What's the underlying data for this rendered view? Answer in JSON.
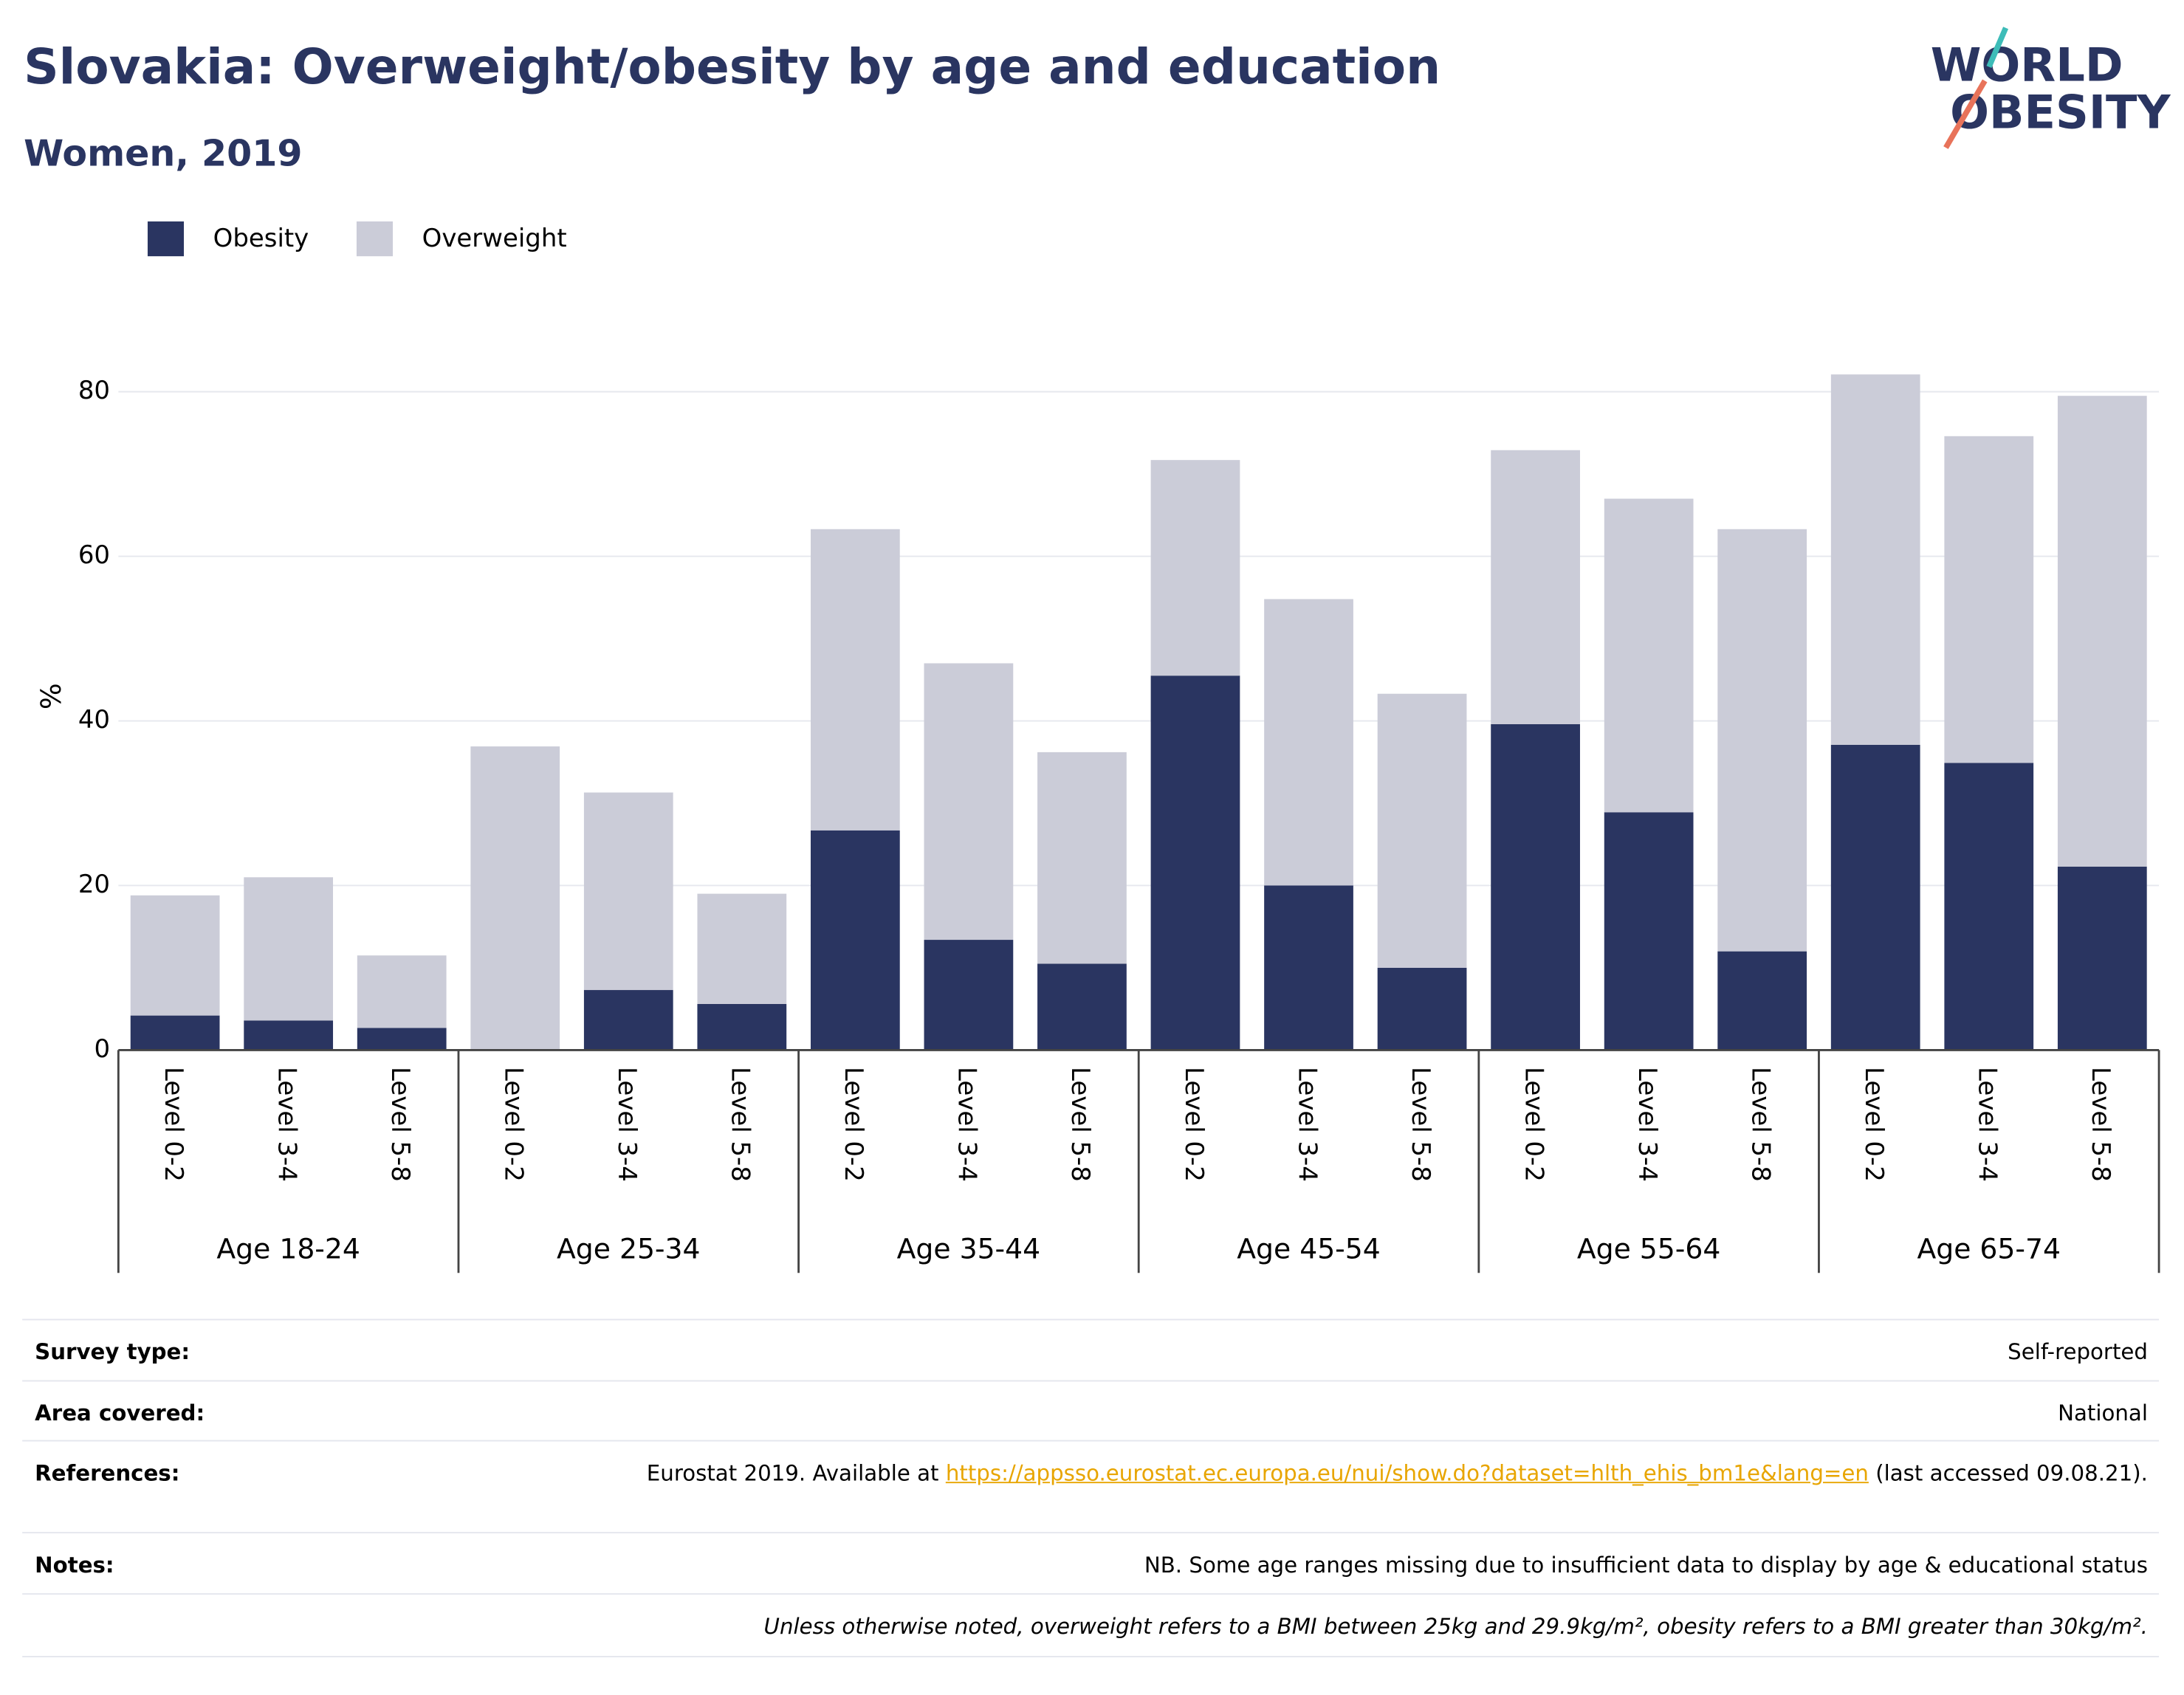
{
  "chart_data": {
    "type": "stacked_bar",
    "title": "Slovakia: Overweight/obesity by age and education",
    "subtitle": "Women, 2019",
    "y_label": "%",
    "categories": [
      "Level 0-2",
      "Level 3-4",
      "Level 5-8",
      "Level 0-2",
      "Level 3-4",
      "Level 5-8",
      "Level 0-2",
      "Level 3-4",
      "Level 5-8",
      "Level 0-2",
      "Level 3-4",
      "Level 5-8",
      "Level 0-2",
      "Level 3-4",
      "Level 5-8",
      "Level 0-2",
      "Level 3-4",
      "Level 5-8"
    ],
    "groups": [
      "Age 18-24",
      "Age 25-34",
      "Age 35-44",
      "Age 45-54",
      "Age 55-64",
      "Age 65-74"
    ],
    "series": [
      {
        "name": "Obesity",
        "color": "#2a3561",
        "values": [
          4.2,
          3.6,
          2.7,
          0,
          7.3,
          5.6,
          26.7,
          13.4,
          10.5,
          45.5,
          20.0,
          10.0,
          39.6,
          28.9,
          12.0,
          37.1,
          34.9,
          22.3
        ]
      },
      {
        "name": "Overweight",
        "color": "#cbccd8",
        "values": [
          14.6,
          17.4,
          8.8,
          36.9,
          24.0,
          13.4,
          36.6,
          33.6,
          25.7,
          26.2,
          34.8,
          33.3,
          33.3,
          38.1,
          51.3,
          45.0,
          39.7,
          57.2
        ]
      }
    ],
    "ylim": [
      0,
      88
    ],
    "yticks": [
      0,
      20,
      40,
      60,
      80
    ],
    "grid": true,
    "legend": "top-left"
  },
  "logo": {
    "line1": "WORLD",
    "line2": "OBESITY"
  },
  "footer": {
    "survey": {
      "label": "Survey type:",
      "value": "Self-reported"
    },
    "area": {
      "label": "Area covered:",
      "value": "National"
    },
    "references": {
      "label": "References:",
      "text": "Eurostat 2019. Available at",
      "link": "https://appsso.eurostat.ec.europa.eu/nui/show.do?dataset=hlth_ehis_bm1e&lang=en",
      "after": "(last accessed 09.08.21)."
    },
    "notes": {
      "label": "Notes:",
      "value": "NB. Some age ranges missing due to insufficient data to display by age & educational status"
    },
    "definition": "Unless otherwise noted, overweight refers to a BMI between 25kg and 29.9kg/m², obesity refers to a BMI greater than 30kg/m²."
  }
}
